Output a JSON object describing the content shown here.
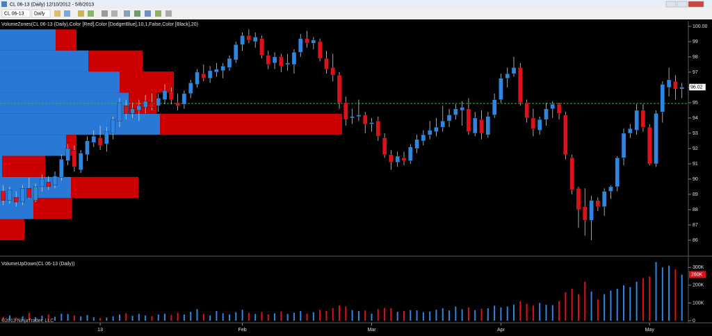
{
  "window": {
    "title": "CL 06-13 (Daily)  12/10/2012 - 5/8/2013"
  },
  "toolbar": {
    "instrument": "CL 06-13",
    "interval": "Daily"
  },
  "footer": "©2013 NinjaTrader, LLC",
  "chart_data": [
    {
      "type": "candlestick",
      "title": "VolumeZones(CL 06-13 (Daily),Color [Red],Color [DodgerBlue],10,1,False,Color [Black],20)",
      "up_color": "#2f86e0",
      "down_color": "#e0101a",
      "wick_color": "#cfcfcf",
      "ylim": [
        85,
        100.36
      ],
      "yticks": [
        86,
        87,
        88,
        89,
        90,
        91,
        92,
        93,
        94,
        95,
        96,
        97,
        98,
        99,
        {
          "value": 100,
          "label": "100.00"
        }
      ],
      "ref_line": 94.95,
      "ref_color": "#22c322",
      "open": [
        89.2,
        88.6,
        88.8,
        88.5,
        89.4,
        88.6,
        89.5,
        89.8,
        89.6,
        90.1,
        91.2,
        91.9,
        90.6,
        91.6,
        92.4,
        92.7,
        92.3,
        93.0,
        93.8,
        94.8,
        94.3,
        94.5,
        94.7,
        95.0,
        94.8,
        95.2,
        95.7,
        95.0,
        94.9,
        95.6,
        96.2,
        96.9,
        96.6,
        97.0,
        97.1,
        97.3,
        97.8,
        98.8,
        99.4,
        99.0,
        99.2,
        98.1,
        97.6,
        98.0,
        97.5,
        97.5,
        98.3,
        99.2,
        98.9,
        99.0,
        97.9,
        97.3,
        96.8,
        95.0,
        94.0,
        94.1,
        94.2,
        93.6,
        93.8,
        92.7,
        91.6,
        91.1,
        91.4,
        91.2,
        92.0,
        92.5,
        92.9,
        93.1,
        93.4,
        93.8,
        94.2,
        94.5,
        94.6,
        93.0,
        93.9,
        92.9,
        94.2,
        95.2,
        96.6,
        96.9,
        97.3,
        95.0,
        94.0,
        93.2,
        93.9,
        94.6,
        94.9,
        94.2,
        91.4,
        89.4,
        88.2,
        87.3,
        88.6,
        88.2,
        89.2,
        89.5,
        91.4,
        93.0,
        93.2,
        94.5,
        93.4,
        91.0,
        94.4,
        96.0,
        96.4,
        95.9
      ],
      "high": [
        89.6,
        89.5,
        89.2,
        89.6,
        90.1,
        89.7,
        90.3,
        90.2,
        90.5,
        91.6,
        92.3,
        92.2,
        91.9,
        92.8,
        93.2,
        93.5,
        93.4,
        94.1,
        95.3,
        95.2,
        95.0,
        95.2,
        95.5,
        95.6,
        95.6,
        96.2,
        96.0,
        95.6,
        95.8,
        96.5,
        97.2,
        97.5,
        97.4,
        97.6,
        97.6,
        98.1,
        99.0,
        99.6,
        99.8,
        99.6,
        99.4,
        98.4,
        98.3,
        98.2,
        98.2,
        98.5,
        99.5,
        99.7,
        99.3,
        99.2,
        98.4,
        98.2,
        97.0,
        95.4,
        94.6,
        95.2,
        94.4,
        94.0,
        94.1,
        93.0,
        91.9,
        91.8,
        91.8,
        92.3,
        92.9,
        93.2,
        93.8,
        94.0,
        94.8,
        94.6,
        94.9,
        95.1,
        95.3,
        94.4,
        94.5,
        94.4,
        95.6,
        96.9,
        97.3,
        98.0,
        97.6,
        95.2,
        94.6,
        94.1,
        95.0,
        95.1,
        95.0,
        94.4,
        91.6,
        89.5,
        89.4,
        88.9,
        88.8,
        89.4,
        89.6,
        91.5,
        93.3,
        93.6,
        94.9,
        94.9,
        93.6,
        94.5,
        96.4,
        97.3,
        96.8,
        96.3
      ],
      "low": [
        88.3,
        88.4,
        88.2,
        88.3,
        88.7,
        88.5,
        89.2,
        89.3,
        89.4,
        89.9,
        90.9,
        90.5,
        90.4,
        91.2,
        92.1,
        91.9,
        91.8,
        92.6,
        93.4,
        93.9,
        94.0,
        93.8,
        94.3,
        94.5,
        94.4,
        94.9,
        94.9,
        94.5,
        94.6,
        95.3,
        96.0,
        96.4,
        96.3,
        96.7,
        96.6,
        97.1,
        97.6,
        98.4,
        98.9,
        98.6,
        97.9,
        97.2,
        97.2,
        97.0,
        97.1,
        96.9,
        98.0,
        98.6,
        98.5,
        97.7,
        96.9,
        96.4,
        94.6,
        93.5,
        93.6,
        93.8,
        93.0,
        93.1,
        92.5,
        91.4,
        90.6,
        90.8,
        90.9,
        91.0,
        91.7,
        92.2,
        92.6,
        92.8,
        93.1,
        93.4,
        93.9,
        93.5,
        92.9,
        92.8,
        92.6,
        92.7,
        94.0,
        95.0,
        96.0,
        96.7,
        94.8,
        93.7,
        92.8,
        92.9,
        93.5,
        94.0,
        93.9,
        91.3,
        89.0,
        86.8,
        86.3,
        86.0,
        87.9,
        87.6,
        88.7,
        89.2,
        90.9,
        92.7,
        92.9,
        93.1,
        90.9,
        90.8,
        93.7,
        95.4,
        95.2,
        95.3
      ],
      "close": [
        88.6,
        89.3,
        88.5,
        89.4,
        88.8,
        89.5,
        90.0,
        89.5,
        90.2,
        91.3,
        92.0,
        90.8,
        91.7,
        92.5,
        92.8,
        92.2,
        93.1,
        93.9,
        95.0,
        94.3,
        94.6,
        94.8,
        95.1,
        94.7,
        95.3,
        95.8,
        95.2,
        94.8,
        95.6,
        96.3,
        97.0,
        96.6,
        97.1,
        97.2,
        97.4,
        97.9,
        98.8,
        99.4,
        99.1,
        99.3,
        98.1,
        97.5,
        98.0,
        97.4,
        97.6,
        98.3,
        99.2,
        98.9,
        99.1,
        97.9,
        97.2,
        96.8,
        95.0,
        93.9,
        94.1,
        94.2,
        93.6,
        93.7,
        92.8,
        91.6,
        91.1,
        91.5,
        91.2,
        92.1,
        92.6,
        92.9,
        93.2,
        93.4,
        93.8,
        94.2,
        94.6,
        94.7,
        93.1,
        94.0,
        93.0,
        94.1,
        95.2,
        96.6,
        96.9,
        97.3,
        95.0,
        94.0,
        93.3,
        93.9,
        94.6,
        94.9,
        94.3,
        91.6,
        89.3,
        88.0,
        87.3,
        88.6,
        88.2,
        89.2,
        89.5,
        91.4,
        93.0,
        93.3,
        94.5,
        93.4,
        91.0,
        94.3,
        96.2,
        96.5,
        95.9,
        96.02
      ],
      "zones": {
        "bounds": [
          86.0,
          87.38,
          88.76,
          90.14,
          91.52,
          92.9,
          94.28,
          95.66,
          97.04,
          98.42,
          99.8
        ],
        "up": [
          0,
          480000,
          1020000,
          30000,
          950000,
          2300000,
          1850000,
          1720000,
          1270000,
          800000
        ],
        "down": [
          350000,
          550000,
          970000,
          620000,
          150000,
          2620000,
          400000,
          780000,
          780000,
          300000
        ],
        "up_color": "#2a78d6",
        "down_color": "#cc0000"
      }
    },
    {
      "type": "bar",
      "title": "VolumeUpDown(CL 06-13 (Daily))",
      "ylim": [
        0,
        340000
      ],
      "yticks": [
        0,
        {
          "value": 100000,
          "label": "100K"
        },
        {
          "value": 200000,
          "label": "200K"
        },
        {
          "value": 300000,
          "label": "300K"
        }
      ],
      "xticks": [
        {
          "value": 15,
          "label": "13"
        },
        {
          "value": 37,
          "label": "Feb"
        },
        {
          "value": 57,
          "label": "Mar"
        },
        {
          "value": 77,
          "label": "Apr"
        },
        {
          "value": 100,
          "label": "May"
        }
      ],
      "values": [
        22000,
        30000,
        18000,
        25000,
        45000,
        20000,
        28000,
        35000,
        22000,
        40000,
        38000,
        30000,
        25000,
        32000,
        20000,
        15000,
        18000,
        25000,
        35000,
        42000,
        28000,
        38000,
        30000,
        26000,
        35000,
        40000,
        32000,
        45000,
        35000,
        50000,
        65000,
        38000,
        30000,
        55000,
        42000,
        35000,
        48000,
        62000,
        45000,
        38000,
        50000,
        35000,
        42000,
        52000,
        38000,
        45000,
        55000,
        40000,
        48000,
        62000,
        55000,
        70000,
        85000,
        80000,
        60000,
        55000,
        58000,
        40000,
        65000,
        72000,
        70000,
        50000,
        55000,
        60000,
        58000,
        48000,
        52000,
        62000,
        70000,
        58000,
        80000,
        65000,
        75000,
        60000,
        68000,
        70000,
        85000,
        75000,
        80000,
        90000,
        110000,
        95000,
        85000,
        100000,
        90000,
        88000,
        110000,
        160000,
        180000,
        150000,
        220000,
        165000,
        120000,
        150000,
        170000,
        180000,
        200000,
        190000,
        220000,
        240000,
        250000,
        330000,
        300000,
        310000,
        290000,
        260000
      ],
      "last_value_label": "260K"
    }
  ]
}
